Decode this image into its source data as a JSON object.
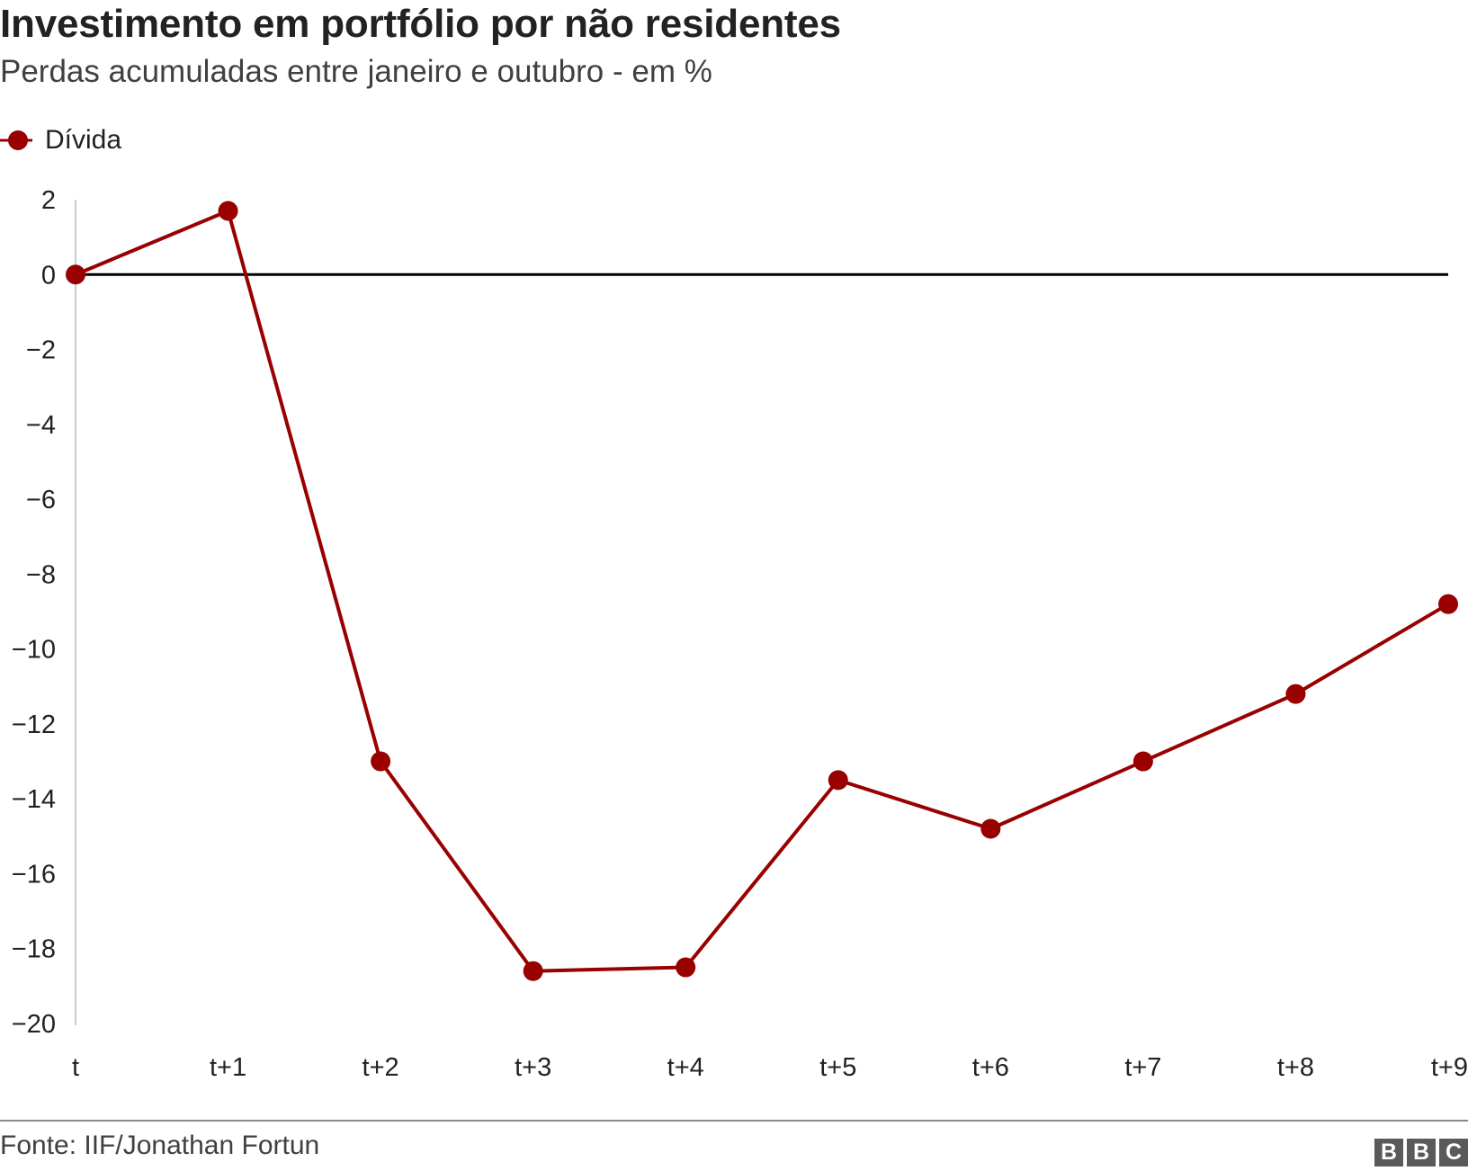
{
  "header": {
    "title": "Investimento em portfólio por não residentes",
    "subtitle": "Perdas acumuladas entre janeiro e outubro - em %"
  },
  "footer": {
    "source": "Fonte: IIF/Jonathan Fortun",
    "logo": [
      "B",
      "B",
      "C"
    ]
  },
  "colors": {
    "series": "#990000",
    "zero_line": "#000000",
    "axis_line": "#cccccc",
    "text": "#222222"
  },
  "chart_data": {
    "type": "line",
    "title": "Investimento em portfólio por não residentes",
    "subtitle": "Perdas acumuladas entre janeiro e outubro - em %",
    "xlabel": "",
    "ylabel": "",
    "categories": [
      "t",
      "t+1",
      "t+2",
      "t+3",
      "t+4",
      "t+5",
      "t+6",
      "t+7",
      "t+8",
      "t+9"
    ],
    "series": [
      {
        "name": "Dívida",
        "values": [
          0,
          1.7,
          -13.0,
          -18.6,
          -18.5,
          -13.5,
          -14.8,
          -13.0,
          -11.2,
          -8.8
        ]
      }
    ],
    "ylim": [
      -20,
      2
    ],
    "yticks": [
      2,
      0,
      -2,
      -4,
      -6,
      -8,
      -10,
      -12,
      -14,
      -16,
      -18,
      -20
    ],
    "ytick_labels": [
      "2",
      "0",
      "−2",
      "−4",
      "−6",
      "−8",
      "−10",
      "−12",
      "−14",
      "−16",
      "−18",
      "−20"
    ],
    "grid": false,
    "zero_line": true,
    "legend_position": "top-left",
    "markers": true
  }
}
